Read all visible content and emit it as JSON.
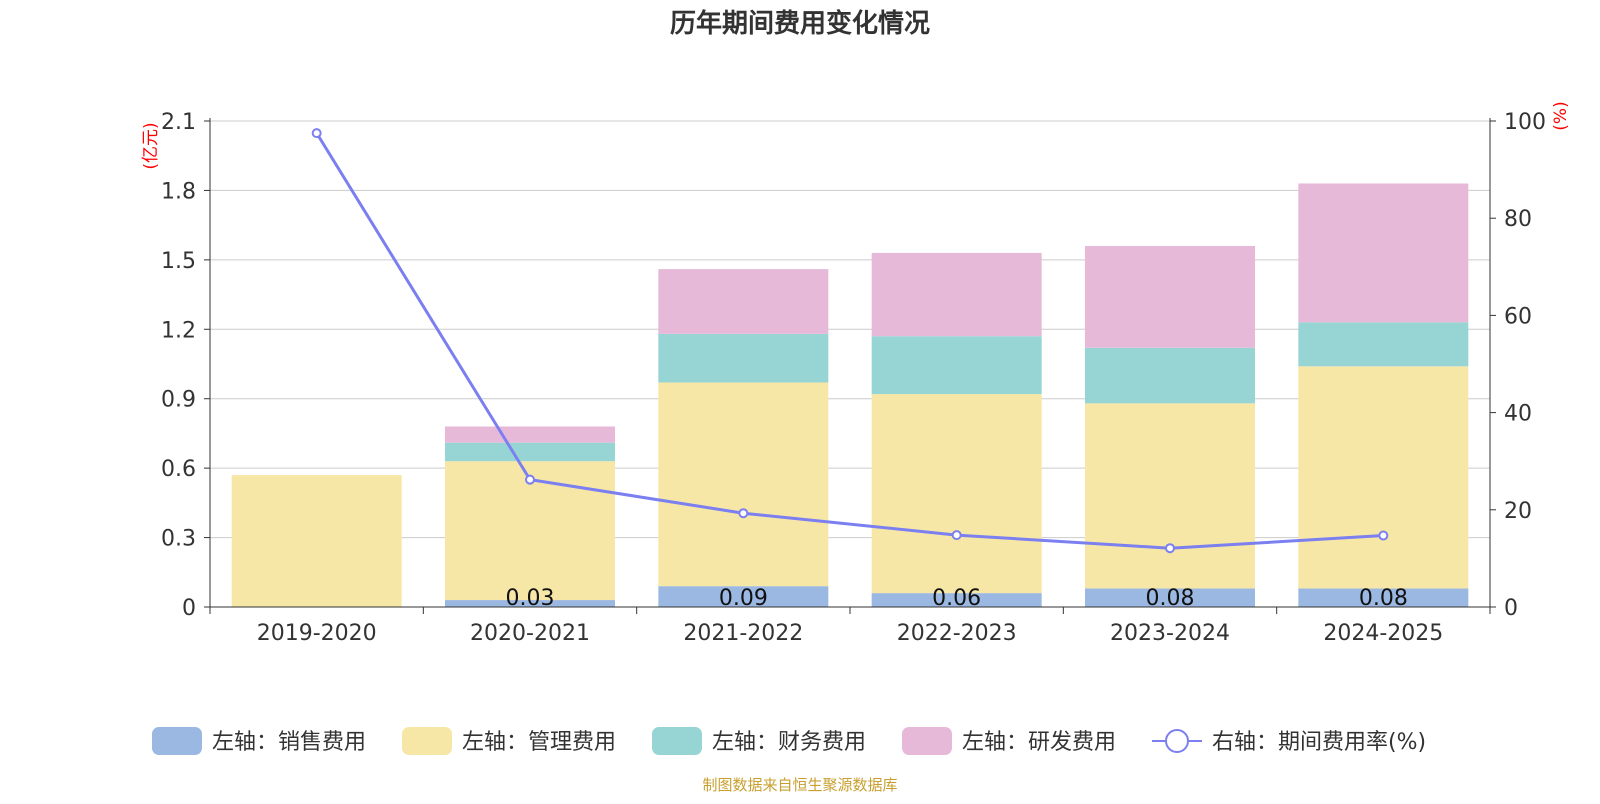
{
  "chart_data": {
    "type": "bar",
    "title": "历年期间费用变化情况",
    "categories": [
      "2019-2020",
      "2020-2021",
      "2021-2022",
      "2022-2023",
      "2023-2024",
      "2024-2025"
    ],
    "stacked": true,
    "series": [
      {
        "name": "左轴：销售费用",
        "type": "bar",
        "axis": "left",
        "color": "#9bb8e3",
        "values": [
          0,
          0.03,
          0.09,
          0.06,
          0.08,
          0.08
        ],
        "labels": [
          "",
          "0.03",
          "0.09",
          "0.06",
          "0.08",
          "0.08"
        ]
      },
      {
        "name": "左轴：管理费用",
        "type": "bar",
        "axis": "left",
        "color": "#f7e7a7",
        "values": [
          0.57,
          0.6,
          0.88,
          0.86,
          0.8,
          0.96
        ]
      },
      {
        "name": "左轴：财务费用",
        "type": "bar",
        "axis": "left",
        "color": "#97d4d4",
        "values": [
          0,
          0.08,
          0.21,
          0.25,
          0.24,
          0.19
        ]
      },
      {
        "name": "左轴：研发费用",
        "type": "bar",
        "axis": "left",
        "color": "#e7b9d8",
        "values": [
          0,
          0.07,
          0.28,
          0.36,
          0.44,
          0.6
        ]
      },
      {
        "name": "右轴：期间费用率(%)",
        "type": "line",
        "axis": "right",
        "color": "#7b7ff0",
        "values": [
          97.5,
          26.2,
          19.3,
          14.8,
          12.1,
          14.7
        ]
      }
    ],
    "y_left": {
      "unit": "(亿元)",
      "ticks": [
        "0",
        "0.3",
        "0.6",
        "0.9",
        "1.2",
        "1.5",
        "1.8",
        "2.1"
      ],
      "range": [
        0,
        2.1
      ]
    },
    "y_right": {
      "unit": "(%)",
      "ticks": [
        "0",
        "20",
        "40",
        "60",
        "80",
        "100"
      ],
      "range": [
        0,
        100
      ]
    },
    "grid": true,
    "legend_position": "bottom"
  },
  "footer": {
    "source": "制图数据来自恒生聚源数据库"
  },
  "colors": {
    "axis": "#333333",
    "grid": "#cccccc",
    "unit": "#ff0000",
    "footer": "#c8a030"
  }
}
